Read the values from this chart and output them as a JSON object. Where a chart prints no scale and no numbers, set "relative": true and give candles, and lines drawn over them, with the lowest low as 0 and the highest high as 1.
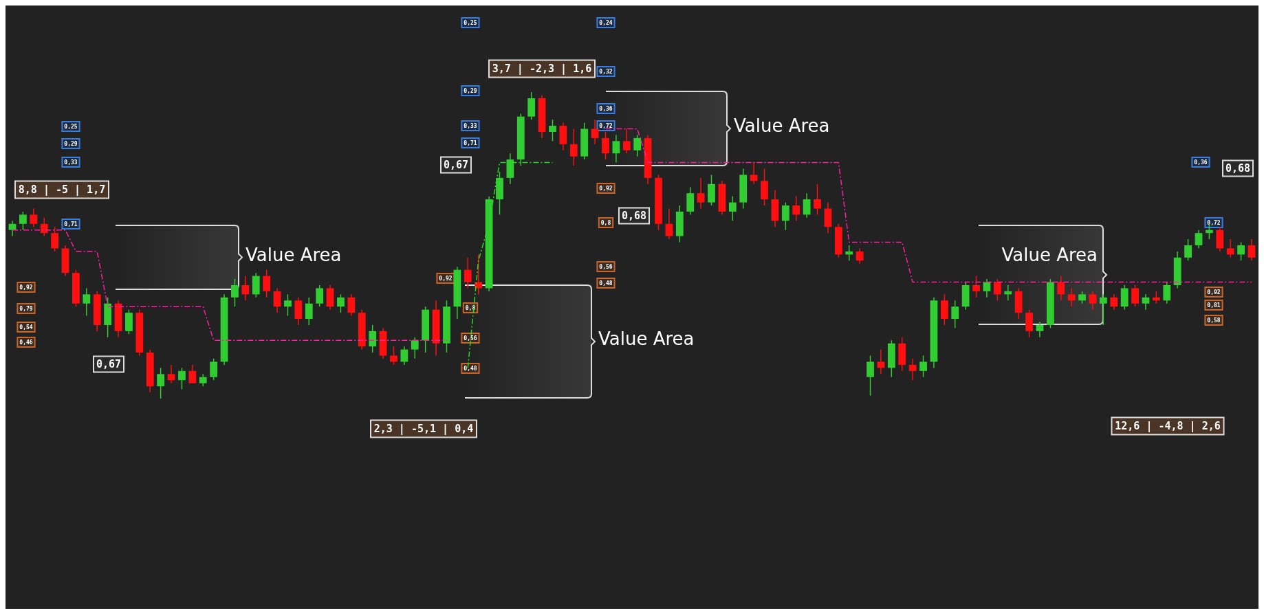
{
  "chart_data": {
    "type": "candlestick",
    "relative": true,
    "categories": [
      null,
      null,
      null,
      null,
      null,
      null,
      null,
      null,
      null,
      null,
      null,
      null,
      null,
      null,
      null,
      null,
      null,
      null,
      null,
      null,
      null,
      null,
      null,
      null,
      null,
      null,
      null,
      null,
      null,
      null,
      null,
      null,
      null,
      null,
      null,
      null,
      null,
      null,
      null,
      null,
      null,
      null,
      null,
      null,
      null,
      null,
      null,
      null,
      null,
      null,
      null,
      null,
      null,
      null,
      null,
      null,
      null,
      null,
      null,
      null,
      null,
      null,
      null,
      null,
      null,
      null,
      null,
      null,
      null,
      null,
      null,
      null,
      null,
      null,
      null,
      null,
      null,
      null,
      null,
      null,
      null,
      null,
      null,
      null,
      null,
      null,
      null,
      null,
      null,
      null,
      null,
      null,
      null,
      null,
      null,
      null,
      null,
      null,
      null,
      null,
      null,
      null,
      null,
      null,
      null,
      null,
      null,
      null,
      null,
      null,
      null,
      null,
      null,
      null,
      null,
      null,
      null,
      null
    ],
    "ohlc": [
      [
        0.55,
        0.58,
        0.53,
        0.57
      ],
      [
        0.57,
        0.61,
        0.55,
        0.6
      ],
      [
        0.6,
        0.62,
        0.56,
        0.57
      ],
      [
        0.57,
        0.59,
        0.53,
        0.54
      ],
      [
        0.54,
        0.56,
        0.48,
        0.49
      ],
      [
        0.49,
        0.5,
        0.4,
        0.41
      ],
      [
        0.41,
        0.42,
        0.3,
        0.31
      ],
      [
        0.31,
        0.36,
        0.27,
        0.34
      ],
      [
        0.34,
        0.35,
        0.22,
        0.24
      ],
      [
        0.24,
        0.33,
        0.2,
        0.31
      ],
      [
        0.31,
        0.32,
        0.2,
        0.22
      ],
      [
        0.22,
        0.29,
        0.21,
        0.28
      ],
      [
        0.28,
        0.29,
        0.14,
        0.15
      ],
      [
        0.15,
        0.16,
        0.02,
        0.04
      ],
      [
        0.04,
        0.1,
        0.0,
        0.08
      ],
      [
        0.08,
        0.11,
        0.05,
        0.06
      ],
      [
        0.06,
        0.1,
        0.03,
        0.09
      ],
      [
        0.09,
        0.11,
        0.05,
        0.05
      ],
      [
        0.05,
        0.08,
        0.04,
        0.07
      ],
      [
        0.07,
        0.13,
        0.06,
        0.12
      ],
      [
        0.12,
        0.34,
        0.11,
        0.33
      ],
      [
        0.33,
        0.39,
        0.3,
        0.37
      ],
      [
        0.37,
        0.4,
        0.32,
        0.34
      ],
      [
        0.34,
        0.41,
        0.33,
        0.4
      ],
      [
        0.4,
        0.42,
        0.33,
        0.35
      ],
      [
        0.35,
        0.36,
        0.28,
        0.3
      ],
      [
        0.3,
        0.34,
        0.27,
        0.32
      ],
      [
        0.32,
        0.33,
        0.24,
        0.26
      ],
      [
        0.26,
        0.33,
        0.24,
        0.31
      ],
      [
        0.31,
        0.37,
        0.3,
        0.36
      ],
      [
        0.36,
        0.37,
        0.29,
        0.3
      ],
      [
        0.3,
        0.34,
        0.28,
        0.33
      ],
      [
        0.33,
        0.34,
        0.27,
        0.28
      ],
      [
        0.28,
        0.29,
        0.16,
        0.17
      ],
      [
        0.17,
        0.24,
        0.15,
        0.22
      ],
      [
        0.22,
        0.23,
        0.13,
        0.14
      ],
      [
        0.14,
        0.17,
        0.11,
        0.12
      ],
      [
        0.12,
        0.17,
        0.11,
        0.16
      ],
      [
        0.16,
        0.2,
        0.13,
        0.19
      ],
      [
        0.19,
        0.3,
        0.15,
        0.29
      ],
      [
        0.29,
        0.32,
        0.14,
        0.18
      ],
      [
        0.18,
        0.32,
        0.15,
        0.3
      ],
      [
        0.3,
        0.43,
        0.26,
        0.42
      ],
      [
        0.42,
        0.46,
        0.36,
        0.38
      ],
      [
        0.38,
        0.47,
        0.34,
        0.36
      ],
      [
        0.36,
        0.66,
        0.35,
        0.65
      ],
      [
        0.65,
        0.74,
        0.6,
        0.72
      ],
      [
        0.72,
        0.8,
        0.7,
        0.78
      ],
      [
        0.78,
        0.93,
        0.76,
        0.92
      ],
      [
        0.92,
        1.0,
        0.91,
        0.98
      ],
      [
        0.98,
        0.99,
        0.85,
        0.87
      ],
      [
        0.87,
        0.91,
        0.84,
        0.89
      ],
      [
        0.89,
        0.9,
        0.81,
        0.83
      ],
      [
        0.83,
        0.88,
        0.76,
        0.79
      ],
      [
        0.79,
        0.9,
        0.78,
        0.88
      ],
      [
        0.88,
        0.91,
        0.83,
        0.85
      ],
      [
        0.85,
        0.87,
        0.78,
        0.8
      ],
      [
        0.8,
        0.86,
        0.77,
        0.84
      ],
      [
        0.84,
        0.88,
        0.8,
        0.81
      ],
      [
        0.81,
        0.86,
        0.79,
        0.85
      ],
      [
        0.85,
        0.86,
        0.7,
        0.72
      ],
      [
        0.72,
        0.73,
        0.55,
        0.57
      ],
      [
        0.57,
        0.62,
        0.52,
        0.53
      ],
      [
        0.53,
        0.63,
        0.51,
        0.61
      ],
      [
        0.61,
        0.69,
        0.6,
        0.67
      ],
      [
        0.67,
        0.72,
        0.62,
        0.64
      ],
      [
        0.64,
        0.73,
        0.63,
        0.7
      ],
      [
        0.7,
        0.71,
        0.6,
        0.61
      ],
      [
        0.61,
        0.66,
        0.58,
        0.64
      ],
      [
        0.64,
        0.75,
        0.62,
        0.73
      ],
      [
        0.73,
        0.77,
        0.7,
        0.71
      ],
      [
        0.71,
        0.75,
        0.63,
        0.65
      ],
      [
        0.65,
        0.68,
        0.56,
        0.58
      ],
      [
        0.58,
        0.64,
        0.55,
        0.63
      ],
      [
        0.63,
        0.66,
        0.58,
        0.6
      ],
      [
        0.6,
        0.67,
        0.59,
        0.65
      ],
      [
        0.65,
        0.7,
        0.6,
        0.62
      ],
      [
        0.62,
        0.64,
        0.54,
        0.56
      ],
      [
        0.56,
        0.57,
        0.46,
        0.47
      ],
      [
        0.47,
        0.5,
        0.45,
        0.48
      ],
      [
        0.48,
        0.49,
        0.44,
        0.45
      ],
      [
        0.07,
        0.14,
        0.01,
        0.12
      ],
      [
        0.12,
        0.16,
        0.08,
        0.1
      ],
      [
        0.1,
        0.19,
        0.07,
        0.18
      ],
      [
        0.18,
        0.2,
        0.09,
        0.11
      ],
      [
        0.11,
        0.13,
        0.06,
        0.09
      ],
      [
        0.09,
        0.14,
        0.07,
        0.12
      ],
      [
        0.12,
        0.33,
        0.1,
        0.32
      ],
      [
        0.32,
        0.34,
        0.24,
        0.26
      ],
      [
        0.26,
        0.32,
        0.23,
        0.3
      ],
      [
        0.3,
        0.38,
        0.29,
        0.37
      ],
      [
        0.37,
        0.4,
        0.33,
        0.35
      ],
      [
        0.35,
        0.39,
        0.33,
        0.38
      ],
      [
        0.38,
        0.39,
        0.32,
        0.34
      ],
      [
        0.34,
        0.37,
        0.32,
        0.35
      ],
      [
        0.35,
        0.36,
        0.26,
        0.28
      ],
      [
        0.28,
        0.29,
        0.2,
        0.22
      ],
      [
        0.22,
        0.25,
        0.2,
        0.24
      ],
      [
        0.24,
        0.39,
        0.23,
        0.38
      ],
      [
        0.38,
        0.4,
        0.32,
        0.34
      ],
      [
        0.34,
        0.36,
        0.3,
        0.32
      ],
      [
        0.32,
        0.35,
        0.31,
        0.34
      ],
      [
        0.34,
        0.35,
        0.29,
        0.31
      ],
      [
        0.31,
        0.34,
        0.24,
        0.33
      ],
      [
        0.33,
        0.34,
        0.29,
        0.3
      ],
      [
        0.3,
        0.37,
        0.29,
        0.36
      ],
      [
        0.36,
        0.37,
        0.3,
        0.31
      ],
      [
        0.31,
        0.34,
        0.29,
        0.33
      ],
      [
        0.33,
        0.35,
        0.31,
        0.32
      ],
      [
        0.32,
        0.38,
        0.31,
        0.37
      ],
      [
        0.37,
        0.48,
        0.36,
        0.46
      ],
      [
        0.46,
        0.52,
        0.45,
        0.5
      ],
      [
        0.5,
        0.55,
        0.49,
        0.54
      ],
      [
        0.54,
        0.57,
        0.52,
        0.55
      ],
      [
        0.55,
        0.56,
        0.48,
        0.49
      ],
      [
        0.49,
        0.52,
        0.46,
        0.47
      ],
      [
        0.47,
        0.51,
        0.45,
        0.5
      ],
      [
        0.5,
        0.52,
        0.45,
        0.46
      ]
    ],
    "series": [
      {
        "type": "line",
        "color": "#ff1fa0",
        "line_style": "dashdot",
        "values": [
          0.55,
          0.55,
          0.55,
          0.55,
          0.55,
          0.55,
          0.48,
          0.48,
          0.48,
          0.3,
          0.3,
          0.3,
          0.3,
          0.3,
          0.3,
          0.3,
          0.3,
          0.3,
          0.3,
          0.19,
          0.19,
          0.19,
          0.19,
          0.19,
          0.19,
          0.19,
          0.19,
          0.19,
          0.19,
          0.19,
          0.19,
          0.19,
          0.19,
          0.19,
          0.19,
          0.19,
          0.19,
          0.19,
          0.19,
          0.19,
          0.19,
          0.19,
          null,
          null,
          null,
          null,
          null,
          null,
          null,
          null,
          null,
          null,
          null,
          null,
          null,
          null,
          0.88,
          0.88,
          0.88,
          0.88,
          0.77,
          0.77,
          0.77,
          0.77,
          0.77,
          0.77,
          0.77,
          0.77,
          0.77,
          0.77,
          0.77,
          0.77,
          0.77,
          0.77,
          0.77,
          0.77,
          0.77,
          0.77,
          0.77,
          0.51,
          0.51,
          0.51,
          0.51,
          0.51,
          0.51,
          0.38,
          0.38,
          0.38,
          0.38,
          0.38,
          0.38,
          0.38,
          0.38,
          0.38,
          0.38,
          0.38,
          0.38,
          0.38,
          0.38,
          0.38,
          0.38,
          0.38,
          0.38,
          0.38,
          0.38,
          0.38,
          0.38,
          0.38,
          0.38,
          0.38,
          0.38,
          0.38,
          0.38,
          0.38,
          0.38,
          0.38,
          0.38,
          0.38
        ]
      },
      {
        "type": "line",
        "color": "#22dd22",
        "line_style": "dashdot",
        "values": [
          null,
          null,
          null,
          null,
          null,
          null,
          null,
          null,
          null,
          null,
          null,
          null,
          null,
          null,
          null,
          null,
          null,
          null,
          null,
          null,
          null,
          null,
          null,
          null,
          null,
          null,
          null,
          null,
          null,
          null,
          null,
          null,
          null,
          null,
          null,
          null,
          null,
          null,
          null,
          null,
          null,
          null,
          null,
          0.1,
          0.45,
          0.57,
          0.77,
          0.77,
          0.77,
          0.77,
          0.77,
          0.77,
          null,
          null,
          null,
          null,
          null,
          null,
          null,
          null,
          null,
          null,
          null,
          null,
          null,
          null,
          null,
          null,
          null,
          null,
          null,
          null,
          null,
          null,
          null,
          null,
          null,
          null,
          null,
          null,
          null,
          null,
          null,
          null,
          null,
          null,
          null,
          null,
          null,
          null,
          null,
          null,
          null,
          null,
          null,
          null,
          null,
          null,
          null,
          null,
          null,
          null,
          null,
          null,
          null,
          null,
          null,
          null,
          null,
          null,
          null,
          null,
          null,
          null,
          null,
          null,
          null,
          null
        ]
      }
    ],
    "annotations": [
      "Value Area",
      "Value Area",
      "Value Area",
      "Value Area",
      "8,8 | -5 | 1,7",
      "3,7 | -2,3 | 1,6",
      "2,3 | -5,1 | 0,4",
      "12,6 | -4,8 | 2,6",
      "0,67",
      "0,67",
      "0,68",
      "0,68",
      "0,25",
      "0,29",
      "0,33",
      "0,71",
      "0,92",
      "0,79",
      "0,54",
      "0,46",
      "0,25",
      "0,29",
      "0,33",
      "0,71",
      "0,92",
      "0,8",
      "0,56",
      "0,48",
      "0,24",
      "0,32",
      "0,36",
      "0,72",
      "0,92",
      "0,8",
      "0,56",
      "0,48",
      "0,36",
      "0,72",
      "0,92",
      "0,81",
      "0,58"
    ]
  }
}
